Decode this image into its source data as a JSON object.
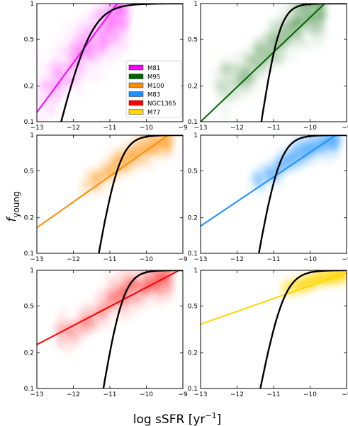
{
  "figure": {
    "xlabel": "log sSFR [yr",
    "xlabel_exp": "−1",
    "xlabel_close": "]",
    "ylabel": "f",
    "ylabel_sub": "young"
  },
  "legend": [
    {
      "name": "M81",
      "color": "#ff00ff"
    },
    {
      "name": "M95",
      "color": "#006400"
    },
    {
      "name": "M100",
      "color": "#ff8c00"
    },
    {
      "name": "M83",
      "color": "#1e90ff"
    },
    {
      "name": "NGC1365",
      "color": "#ff0000"
    },
    {
      "name": "M77",
      "color": "#ffd700"
    }
  ],
  "chart_data": [
    {
      "type": "scatter",
      "galaxy": "M81",
      "color": "#ff00ff",
      "xlim": [
        -13,
        -9
      ],
      "ylim": [
        0.1,
        1
      ],
      "yscale": "log",
      "fit_line": {
        "x": [
          -13,
          -10.8
        ],
        "y": [
          0.12,
          1.0
        ]
      },
      "cloud": {
        "xmin": -13,
        "xmax": -10.5,
        "center_y_at_x": [
          [
            -12.8,
            0.17
          ],
          [
            -12,
            0.32
          ],
          [
            -11.4,
            0.5
          ],
          [
            -11,
            0.68
          ],
          [
            -10.6,
            0.85
          ]
        ],
        "spread": 0.45
      },
      "model_curve": "black"
    },
    {
      "type": "scatter",
      "galaxy": "M95",
      "color": "#006400",
      "xlim": [
        -13,
        -9
      ],
      "ylim": [
        0.1,
        1
      ],
      "yscale": "log",
      "fit_line": {
        "x": [
          -13,
          -9.6
        ],
        "y": [
          0.1,
          1.0
        ]
      },
      "cloud": {
        "xmin": -12.6,
        "xmax": -9.6,
        "center_y_at_x": [
          [
            -12,
            0.22
          ],
          [
            -11.2,
            0.38
          ],
          [
            -10.7,
            0.55
          ],
          [
            -10.2,
            0.78
          ]
        ],
        "spread": 0.35
      },
      "model_curve": "black"
    },
    {
      "type": "scatter",
      "galaxy": "M100",
      "color": "#ff8c00",
      "xlim": [
        -13,
        -9
      ],
      "ylim": [
        0.1,
        1
      ],
      "yscale": "log",
      "fit_line": {
        "x": [
          -13,
          -9.4
        ],
        "y": [
          0.165,
          1.0
        ]
      },
      "cloud": {
        "xmin": -11.8,
        "xmax": -9.3,
        "center_y_at_x": [
          [
            -11.5,
            0.4
          ],
          [
            -11,
            0.5
          ],
          [
            -10.5,
            0.65
          ],
          [
            -10,
            0.78
          ],
          [
            -9.5,
            0.88
          ]
        ],
        "spread": 0.22
      },
      "model_curve": "black"
    },
    {
      "type": "scatter",
      "galaxy": "M83",
      "color": "#1e90ff",
      "xlim": [
        -13,
        -9
      ],
      "ylim": [
        0.1,
        1
      ],
      "yscale": "log",
      "fit_line": {
        "x": [
          -13,
          -9.3
        ],
        "y": [
          0.17,
          1.0
        ]
      },
      "cloud": {
        "xmin": -11.6,
        "xmax": -9.2,
        "center_y_at_x": [
          [
            -11.3,
            0.42
          ],
          [
            -10.8,
            0.55
          ],
          [
            -10.3,
            0.7
          ],
          [
            -9.8,
            0.82
          ],
          [
            -9.3,
            0.9
          ]
        ],
        "spread": 0.2
      },
      "model_curve": "black"
    },
    {
      "type": "scatter",
      "galaxy": "NGC1365",
      "color": "#ff0000",
      "xlim": [
        -13,
        -9
      ],
      "ylim": [
        0.1,
        1
      ],
      "yscale": "log",
      "fit_line": {
        "x": [
          -13,
          -9.1
        ],
        "y": [
          0.235,
          1.0
        ]
      },
      "cloud": {
        "xmin": -12.5,
        "xmax": -9.3,
        "center_y_at_x": [
          [
            -12,
            0.3
          ],
          [
            -11.2,
            0.5
          ],
          [
            -10.5,
            0.66
          ],
          [
            -10,
            0.75
          ],
          [
            -9.5,
            0.85
          ]
        ],
        "spread": 0.28
      },
      "model_curve": "black"
    },
    {
      "type": "scatter",
      "galaxy": "M77",
      "color": "#ffd700",
      "xlim": [
        -13,
        -9
      ],
      "ylim": [
        0.1,
        1
      ],
      "yscale": "log",
      "fit_line": {
        "x": [
          -13,
          -9
        ],
        "y": [
          0.35,
          0.95
        ]
      },
      "cloud": {
        "xmin": -10.8,
        "xmax": -9,
        "center_y_at_x": [
          [
            -10.6,
            0.7
          ],
          [
            -10,
            0.8
          ],
          [
            -9.5,
            0.88
          ],
          [
            -9.05,
            0.93
          ]
        ],
        "spread": 0.12
      },
      "model_curve": "black"
    }
  ],
  "axes": {
    "xticks": [
      -13,
      -12,
      -11,
      -10,
      -9
    ],
    "xtick_labels": [
      "−13",
      "−12",
      "−11",
      "−10",
      "−9"
    ],
    "yticks": [
      0.1,
      0.2,
      0.5,
      1
    ],
    "ytick_labels": [
      "0.1",
      "0.2",
      "0.5",
      "1"
    ]
  }
}
